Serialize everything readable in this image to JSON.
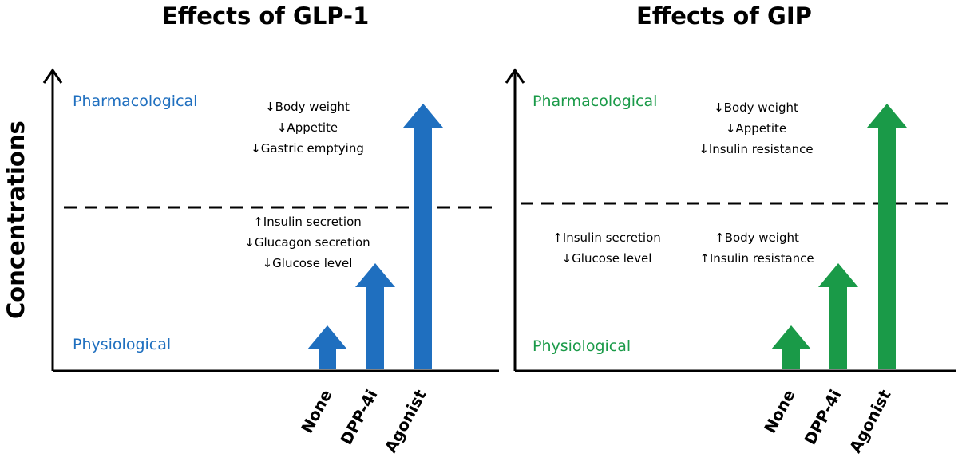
{
  "y_axis_label": "Concentrations",
  "colors": {
    "glp1": "#1f6fbf",
    "gip": "#1a9a48"
  },
  "panels": [
    {
      "id": "glp1",
      "title": "Effects of GLP-1",
      "levels": {
        "high": "Pharmacological",
        "low": "Physiological"
      },
      "pharmacological_effects": [
        "↓Body weight",
        "↓Appetite",
        "↓Gastric emptying"
      ],
      "physiological_effects_left": [
        "↑Insulin secretion",
        "↓Glucagon secretion",
        "↓Glucose level"
      ],
      "physiological_effects_right": [],
      "arrows": [
        {
          "label": "None",
          "level": 1
        },
        {
          "label": "DPP-4i",
          "level": 2
        },
        {
          "label": "Agonist",
          "level": 3
        }
      ]
    },
    {
      "id": "gip",
      "title": "Effects of GIP",
      "levels": {
        "high": "Pharmacological",
        "low": "Physiological"
      },
      "pharmacological_effects": [
        "↓Body weight",
        "↓Appetite",
        "↓Insulin resistance"
      ],
      "physiological_effects_left": [
        "↑Insulin secretion",
        "↓Glucose level"
      ],
      "physiological_effects_right": [
        "↑Body weight",
        "↑Insulin resistance"
      ],
      "arrows": [
        {
          "label": "None",
          "level": 1
        },
        {
          "label": "DPP-4i",
          "level": 2
        },
        {
          "label": "Agonist",
          "level": 3
        }
      ]
    }
  ]
}
